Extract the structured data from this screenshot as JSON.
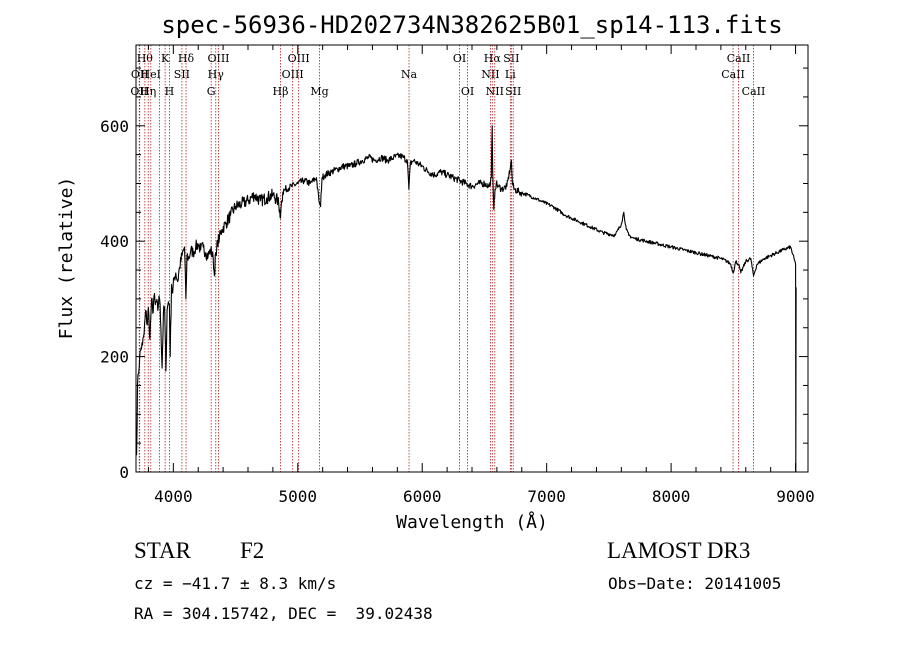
{
  "chart_data": {
    "type": "line",
    "title": "spec-56936-HD202734N382625B01_sp14-113.fits",
    "xlabel": "Wavelength (Å)",
    "ylabel": "Flux (relative)",
    "xlim": [
      3700,
      9100
    ],
    "ylim": [
      0,
      740
    ],
    "x_ticks": [
      4000,
      5000,
      6000,
      7000,
      8000,
      9000
    ],
    "y_ticks": [
      0,
      200,
      400,
      600
    ],
    "series": [
      {
        "name": "spectrum",
        "x": [
          3700,
          3705,
          3712,
          3720,
          3730,
          3740,
          3752,
          3765,
          3778,
          3790,
          3800,
          3812,
          3825,
          3835,
          3845,
          3855,
          3865,
          3875,
          3885,
          3890,
          3900,
          3910,
          3920,
          3930,
          3940,
          3950,
          3960,
          3968,
          3975,
          3985,
          3995,
          4005,
          4020,
          4035,
          4050,
          4070,
          4090,
          4101,
          4110,
          4125,
          4140,
          4160,
          4180,
          4200,
          4220,
          4240,
          4260,
          4280,
          4300,
          4320,
          4330,
          4340,
          4345,
          4355,
          4370,
          4390,
          4420,
          4460,
          4500,
          4550,
          4600,
          4650,
          4700,
          4750,
          4800,
          4840,
          4855,
          4861,
          4870,
          4880,
          4900,
          4950,
          5000,
          5050,
          5100,
          5150,
          5170,
          5183,
          5195,
          5220,
          5270,
          5320,
          5370,
          5420,
          5470,
          5520,
          5570,
          5620,
          5670,
          5720,
          5770,
          5820,
          5850,
          5880,
          5893,
          5905,
          5930,
          5960,
          6000,
          6050,
          6100,
          6150,
          6200,
          6250,
          6300,
          6350,
          6400,
          6450,
          6500,
          6540,
          6555,
          6562,
          6566,
          6575,
          6585,
          6595,
          6610,
          6640,
          6680,
          6710,
          6717,
          6725,
          6740,
          6780,
          6850,
          6950,
          7050,
          7150,
          7250,
          7350,
          7450,
          7550,
          7600,
          7620,
          7640,
          7660,
          7700,
          7800,
          7900,
          8000,
          8100,
          8200,
          8300,
          8400,
          8450,
          8480,
          8498,
          8520,
          8542,
          8560,
          8600,
          8640,
          8662,
          8690,
          8750,
          8800,
          8850,
          8900,
          8960,
          9000,
          9002,
          9004
        ],
        "values": [
          60,
          30,
          150,
          170,
          200,
          215,
          220,
          240,
          280,
          255,
          285,
          230,
          300,
          275,
          305,
          290,
          295,
          280,
          305,
          300,
          250,
          180,
          275,
          285,
          175,
          280,
          295,
          290,
          200,
          325,
          310,
          335,
          345,
          330,
          355,
          375,
          390,
          300,
          375,
          370,
          385,
          380,
          390,
          395,
          385,
          390,
          380,
          375,
          385,
          370,
          340,
          380,
          375,
          400,
          405,
          420,
          430,
          445,
          460,
          465,
          470,
          480,
          470,
          475,
          480,
          470,
          455,
          440,
          470,
          485,
          490,
          495,
          500,
          505,
          500,
          510,
          470,
          460,
          510,
          515,
          520,
          525,
          530,
          530,
          535,
          540,
          545,
          540,
          545,
          540,
          545,
          548,
          545,
          540,
          490,
          535,
          540,
          535,
          530,
          520,
          515,
          520,
          515,
          510,
          505,
          500,
          495,
          500,
          500,
          495,
          510,
          600,
          520,
          455,
          490,
          500,
          495,
          490,
          495,
          530,
          540,
          500,
          490,
          485,
          480,
          470,
          460,
          445,
          435,
          425,
          415,
          410,
          430,
          450,
          420,
          410,
          405,
          400,
          395,
          390,
          385,
          380,
          375,
          370,
          365,
          360,
          345,
          365,
          360,
          345,
          365,
          370,
          340,
          360,
          370,
          375,
          380,
          385,
          390,
          360,
          0,
          320
        ]
      }
    ],
    "line_markers": [
      {
        "wavelength": 3726,
        "label": "OII",
        "row": 3
      },
      {
        "wavelength": 3730,
        "label": "OII",
        "row": 2
      },
      {
        "wavelength": 3771,
        "label": "Hθ",
        "row": 1
      },
      {
        "wavelength": 3798,
        "label": "Hη",
        "row": 3
      },
      {
        "wavelength": 3819,
        "label": "HeI",
        "row": 2
      },
      {
        "wavelength": 3889,
        "label": "",
        "row": 0
      },
      {
        "wavelength": 3934,
        "label": "K",
        "row": 1
      },
      {
        "wavelength": 3969,
        "label": "H",
        "row": 3
      },
      {
        "wavelength": 4069,
        "label": "SII",
        "row": 2
      },
      {
        "wavelength": 4102,
        "label": "Hδ",
        "row": 1
      },
      {
        "wavelength": 4304,
        "label": "G",
        "row": 3
      },
      {
        "wavelength": 4341,
        "label": "Hγ",
        "row": 2
      },
      {
        "wavelength": 4363,
        "label": "OIII",
        "row": 1
      },
      {
        "wavelength": 4861,
        "label": "Hβ",
        "row": 3
      },
      {
        "wavelength": 4959,
        "label": "OIII",
        "row": 2
      },
      {
        "wavelength": 5007,
        "label": "OIII",
        "row": 1
      },
      {
        "wavelength": 5175,
        "label": "Mg",
        "row": 3
      },
      {
        "wavelength": 5894,
        "label": "Na",
        "row": 2
      },
      {
        "wavelength": 6300,
        "label": "OI",
        "row": 1
      },
      {
        "wavelength": 6364,
        "label": "OI",
        "row": 3
      },
      {
        "wavelength": 6548,
        "label": "NII",
        "row": 2
      },
      {
        "wavelength": 6563,
        "label": "Hα",
        "row": 1
      },
      {
        "wavelength": 6583,
        "label": "NII",
        "row": 3
      },
      {
        "wavelength": 6708,
        "label": "Li",
        "row": 2
      },
      {
        "wavelength": 6716,
        "label": "SII",
        "row": 1
      },
      {
        "wavelength": 6731,
        "label": "SII",
        "row": 3
      },
      {
        "wavelength": 8498,
        "label": "CaII",
        "row": 2
      },
      {
        "wavelength": 8542,
        "label": "CaII",
        "row": 1
      },
      {
        "wavelength": 8662,
        "label": "CaII",
        "row": 3
      }
    ]
  },
  "info": {
    "class": "STAR",
    "subclass": "F2",
    "survey": "LAMOST DR3",
    "cz": "cz = −41.7 ± 8.3 km/s",
    "obs_date": "Obs−Date: 20141005",
    "radec": "RA = 304.15742, DEC =  39.02438"
  }
}
